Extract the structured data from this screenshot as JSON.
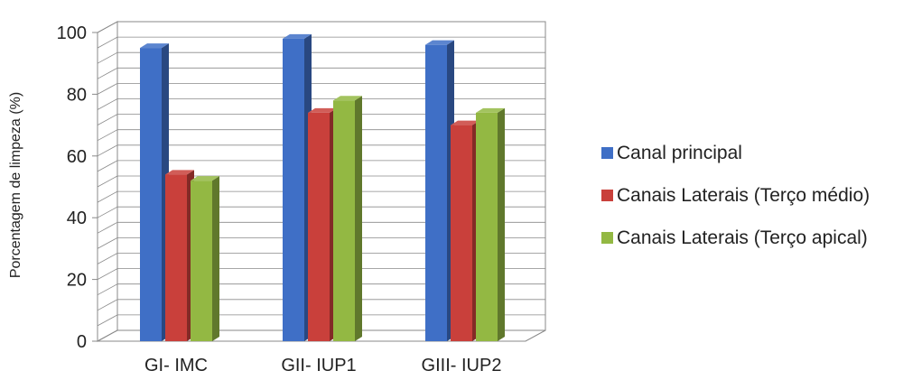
{
  "chart_data": {
    "type": "bar",
    "categories": [
      "GI- IMC",
      "GII- IUP1",
      "GIII- IUP2"
    ],
    "series": [
      {
        "name": "Canal principal",
        "values": [
          95,
          98,
          96
        ],
        "color": "#3F6FC6"
      },
      {
        "name": "Canais Laterais (Terço médio)",
        "values": [
          54,
          74,
          70
        ],
        "color": "#C9403B"
      },
      {
        "name": "Canais Laterais (Terço apical)",
        "values": [
          52,
          78,
          74
        ],
        "color": "#93B843"
      }
    ],
    "title": "",
    "xlabel": "",
    "ylabel": "Porcentagem de limpeza (%)",
    "ylim": [
      0,
      100
    ],
    "yticks": [
      "0",
      "20",
      "40",
      "60",
      "80",
      "100"
    ],
    "grid": true,
    "legend": "right",
    "style": "3d-clustered-column"
  }
}
